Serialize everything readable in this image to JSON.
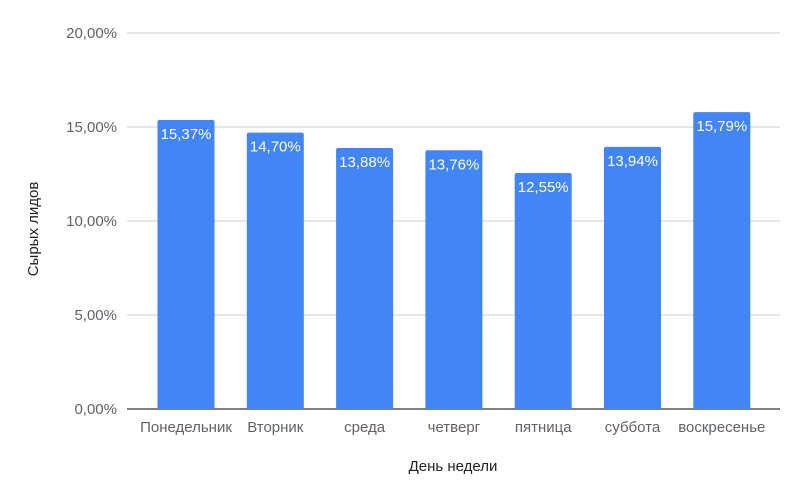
{
  "chart_data": {
    "type": "bar",
    "title": "",
    "xlabel": "День недели",
    "ylabel": "Сырых лидов",
    "categories": [
      "Понедельник",
      "Вторник",
      "среда",
      "четверг",
      "пятница",
      "суббота",
      "воскресенье"
    ],
    "values": [
      15.37,
      14.7,
      13.88,
      13.76,
      12.55,
      13.94,
      15.79
    ],
    "data_labels": [
      "15,37%",
      "14,70%",
      "13,88%",
      "13,76%",
      "12,55%",
      "13,94%",
      "15,79%"
    ],
    "ylim": [
      0,
      20
    ],
    "yticks": [
      0,
      5,
      10,
      15,
      20
    ],
    "ytick_labels": [
      "0,00%",
      "5,00%",
      "10,00%",
      "15,00%",
      "20,00%"
    ],
    "grid": true,
    "legend": "none",
    "colors": {
      "bar": "#4285f4",
      "grid": "#cccccc",
      "baseline": "#333333"
    }
  }
}
